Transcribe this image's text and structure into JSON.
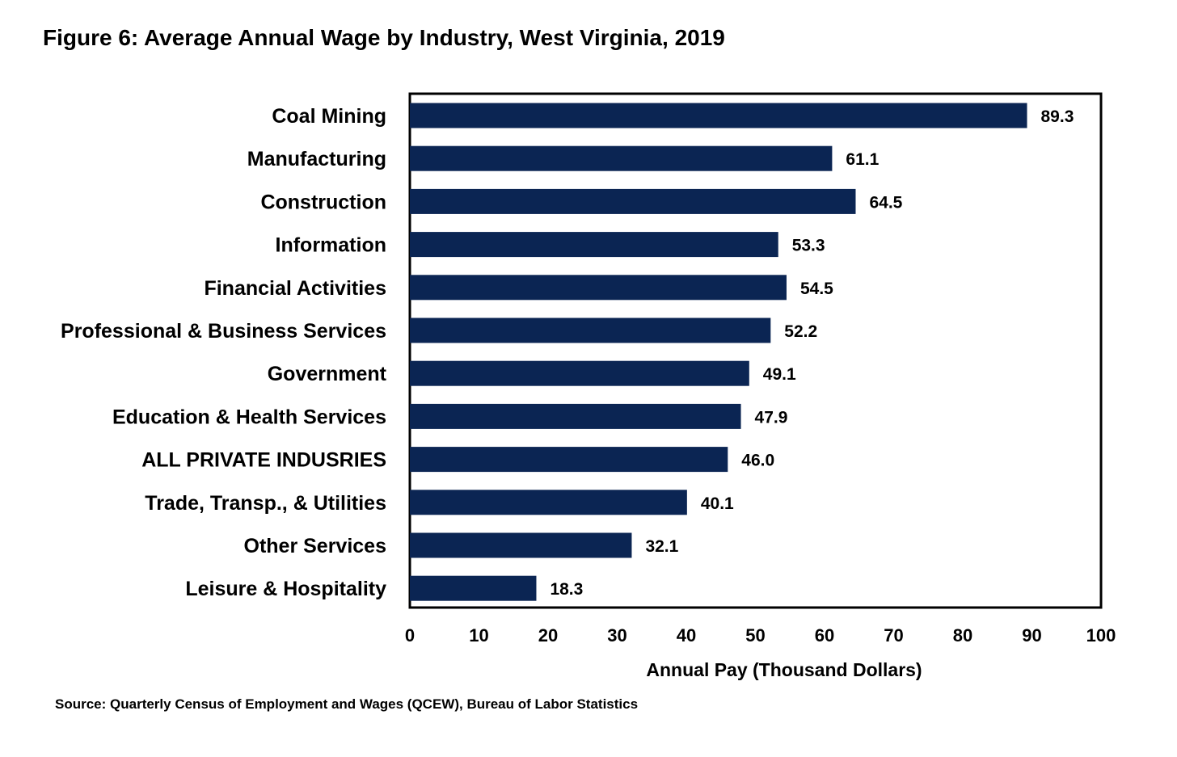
{
  "chart_data": {
    "type": "bar",
    "orientation": "horizontal",
    "title": "Figure 6: Average Annual Wage by Industry, West Virginia, 2019",
    "xlabel": "Annual Pay (Thousand Dollars)",
    "ylabel": "",
    "xlim": [
      0,
      100
    ],
    "xticks": [
      "0",
      "10",
      "20",
      "30",
      "40",
      "50",
      "60",
      "70",
      "80",
      "90",
      "100"
    ],
    "categories": [
      "Coal Mining",
      "Manufacturing",
      "Construction",
      "Information",
      "Financial Activities",
      "Professional & Business Services",
      "Government",
      "Education & Health Services",
      "ALL PRIVATE INDUSRIES",
      "Trade, Transp., & Utilities",
      "Other Services",
      "Leisure & Hospitality"
    ],
    "values": [
      89.3,
      61.1,
      64.5,
      53.3,
      54.5,
      52.2,
      49.1,
      47.9,
      46.0,
      40.1,
      32.1,
      18.3
    ],
    "value_labels": [
      "89.3",
      "61.1",
      "64.5",
      "53.3",
      "54.5",
      "52.2",
      "49.1",
      "47.9",
      "46.0",
      "40.1",
      "32.1",
      "18.3"
    ],
    "bar_color": "#0b2553",
    "grid": false,
    "legend": "none",
    "source": "Source: Quarterly Census of Employment and Wages (QCEW), Bureau of Labor Statistics"
  }
}
